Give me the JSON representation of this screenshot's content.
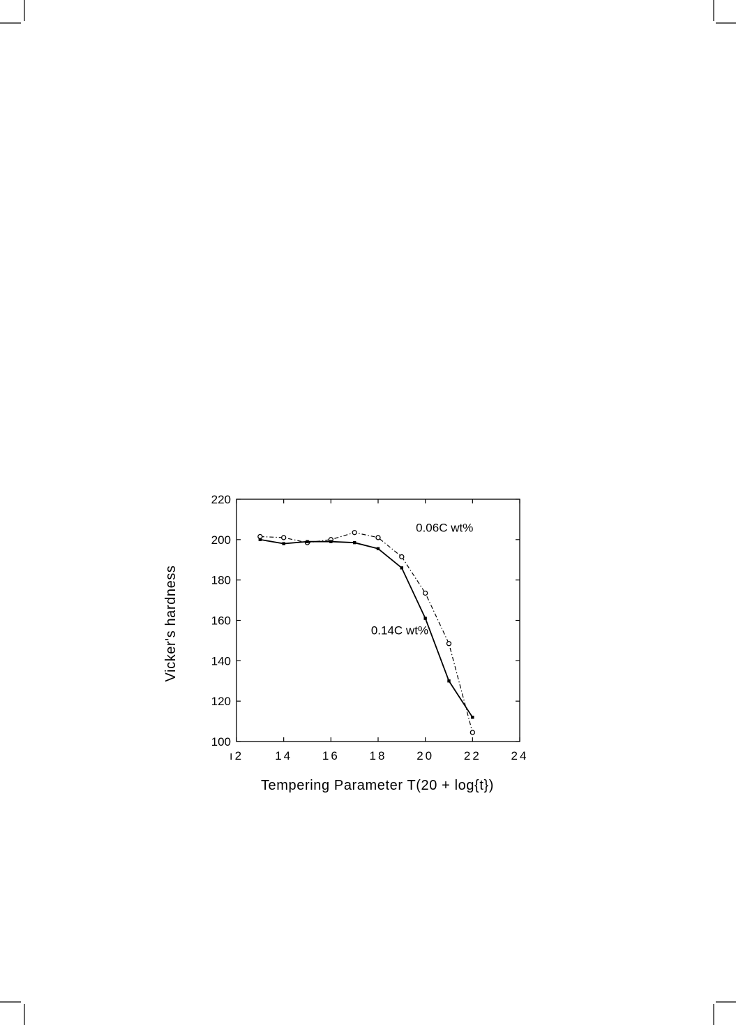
{
  "chart_data": {
    "type": "line",
    "xlabel": "Tempering Parameter T(20 + log{t})",
    "ylabel": "Vicker's hardness",
    "xlim": [
      12,
      24
    ],
    "ylim": [
      100,
      220
    ],
    "xticks": [
      12,
      14,
      16,
      18,
      20,
      22,
      24
    ],
    "xtick_labels": [
      "ı2",
      "14",
      "16",
      "18",
      "20",
      "22",
      "24"
    ],
    "yticks": [
      100,
      120,
      140,
      160,
      180,
      200,
      220
    ],
    "ytick_labels": [
      "100",
      "120",
      "140",
      "160",
      "180",
      "200",
      "220"
    ],
    "grid": false,
    "legend": "none",
    "x": [
      13,
      14,
      15,
      16,
      17,
      18,
      19,
      20,
      21,
      22
    ],
    "series": [
      {
        "name": "0.06C wt%",
        "values": [
          201.5,
          201,
          198.5,
          200,
          203.5,
          201,
          191.5,
          173.5,
          148.5,
          104.5
        ],
        "line_style": "dash-dot",
        "marker": "open-circle",
        "color": "#000000"
      },
      {
        "name": "0.14C wt%",
        "values": [
          200,
          198,
          199,
          199,
          198.5,
          195.5,
          186,
          161,
          130,
          112
        ],
        "line_style": "solid",
        "marker": "filled-square",
        "color": "#000000"
      }
    ],
    "annotations": [
      {
        "text": "0.06C wt%",
        "x": 19.6,
        "y": 204
      },
      {
        "text": "0.14C wt%",
        "x": 17.7,
        "y": 153
      }
    ]
  }
}
